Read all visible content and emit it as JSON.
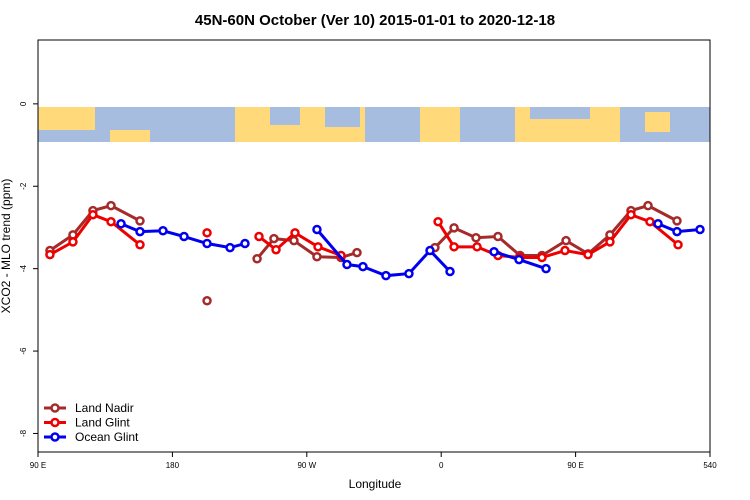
{
  "chart_data": {
    "type": "line",
    "title": "45N-60N October (Ver 10)   2015-01-01 to 2020-12-18",
    "x_label": "Longitude",
    "y_label": "XCO2 - MLO trend (ppm)",
    "xlim": [
      90,
      540
    ],
    "ylim": [
      -8.45,
      1.55
    ],
    "xticks": [
      {
        "value": 90,
        "label": "90 E"
      },
      180,
      {
        "value": 270,
        "label": "90 W"
      },
      {
        "value": 360,
        "label": "0"
      },
      {
        "value": 450,
        "label": "90 E"
      },
      540
    ],
    "yticks": [
      0,
      -2,
      -4,
      -6,
      -8
    ],
    "legend": "bottom-left",
    "series": [
      {
        "name": "Land Nadir",
        "color": "#a52a2a",
        "x": [
          98,
          113.4,
          126.8,
          138.9,
          158.3,
          null,
          203.2,
          null,
          236.7,
          248,
          261.4,
          276.8,
          292.9,
          303.6,
          null,
          355.8,
          368.6,
          383.3,
          398,
          412.8,
          427.5,
          443.6,
          458.3,
          473,
          487.1,
          498.5,
          517.9
        ],
        "values": [
          -3.56,
          -3.18,
          -2.59,
          -2.47,
          -2.84,
          null,
          -4.78,
          null,
          -3.76,
          -3.27,
          -3.32,
          -3.71,
          -3.73,
          -3.61,
          null,
          -3.49,
          -3.01,
          -3.25,
          -3.22,
          -3.68,
          -3.68,
          -3.32,
          -3.64,
          -3.18,
          -2.59,
          -2.47,
          -2.84
        ]
      },
      {
        "name": "Land Glint",
        "color": "#ee0000",
        "x": [
          98,
          113.4,
          126.8,
          138.9,
          158.3,
          null,
          203.2,
          null,
          238,
          249.4,
          262.1,
          277.5,
          292.9,
          null,
          357.9,
          368.6,
          384,
          398,
          412.8,
          427.5,
          442.9,
          458.3,
          473,
          487.1,
          499.8,
          518.6
        ],
        "values": [
          -3.66,
          -3.35,
          -2.69,
          -2.86,
          -3.42,
          null,
          -3.13,
          null,
          -3.22,
          -3.54,
          -3.13,
          -3.47,
          -3.68,
          null,
          -2.86,
          -3.47,
          -3.47,
          -3.68,
          -3.73,
          -3.73,
          -3.56,
          -3.66,
          -3.35,
          -2.69,
          -2.86,
          -3.42
        ]
      },
      {
        "name": "Ocean Glint",
        "color": "#0000ee",
        "x": [
          145.6,
          158.3,
          173.7,
          187.8,
          203.2,
          218.6,
          228.6,
          null,
          276.8,
          296.9,
          307.6,
          323,
          338.4,
          352.5,
          365.9,
          null,
          395.4,
          412.1,
          430.2,
          null,
          505.2,
          517.9,
          533.3
        ],
        "values": [
          -2.91,
          -3.1,
          -3.08,
          -3.22,
          -3.39,
          -3.49,
          -3.39,
          null,
          -3.05,
          -3.9,
          -3.95,
          -4.17,
          -4.12,
          -3.56,
          -4.07,
          null,
          -3.59,
          -3.78,
          -4.0,
          null,
          -2.91,
          -3.1,
          -3.05
        ]
      }
    ]
  }
}
